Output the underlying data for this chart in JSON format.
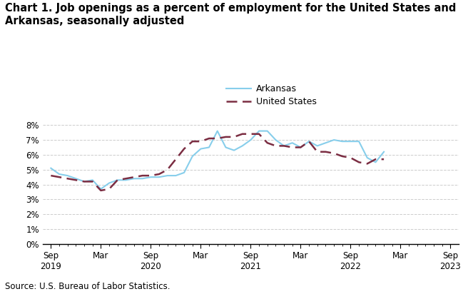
{
  "title": "Chart 1. Job openings as a percent of employment for the United States and\nArkansas, seasonally adjusted",
  "source": "Source: U.S. Bureau of Labor Statistics.",
  "arkansas": [
    5.1,
    4.7,
    4.6,
    4.4,
    4.2,
    4.3,
    3.7,
    4.1,
    4.3,
    4.3,
    4.4,
    4.4,
    4.5,
    4.5,
    4.6,
    4.6,
    4.8,
    5.9,
    6.4,
    6.5,
    7.6,
    6.5,
    6.3,
    6.6,
    7.0,
    7.6,
    7.6,
    7.0,
    6.6,
    6.8,
    6.5,
    6.9,
    6.6,
    6.8,
    7.0,
    6.9,
    6.9,
    6.9,
    5.8,
    5.5,
    6.2
  ],
  "us": [
    4.6,
    4.5,
    4.4,
    4.3,
    4.2,
    4.2,
    3.6,
    3.7,
    4.3,
    4.4,
    4.5,
    4.6,
    4.6,
    4.7,
    5.0,
    5.7,
    6.4,
    6.9,
    6.9,
    7.1,
    7.1,
    7.2,
    7.2,
    7.4,
    7.4,
    7.4,
    6.8,
    6.6,
    6.6,
    6.5,
    6.5,
    6.9,
    6.2,
    6.2,
    6.1,
    5.9,
    5.8,
    5.5,
    5.4,
    5.7,
    5.7
  ],
  "arkansas_color": "#87CEEB",
  "us_color": "#7B2D42",
  "grid_color": "#cccccc",
  "title_fontsize": 10.5,
  "axis_fontsize": 8.5,
  "legend_fontsize": 9,
  "tick_label_positions": [
    0,
    6,
    12,
    18,
    24,
    30,
    36,
    42,
    48
  ],
  "tick_labels_row1": [
    "Sep",
    "Mar",
    "Sep",
    "Mar",
    "Sep",
    "Mar",
    "Sep",
    "Mar",
    "Sep"
  ],
  "tick_labels_row2": [
    "2019",
    "",
    "2020",
    "",
    "2021",
    "",
    "2022",
    "",
    "2023"
  ]
}
